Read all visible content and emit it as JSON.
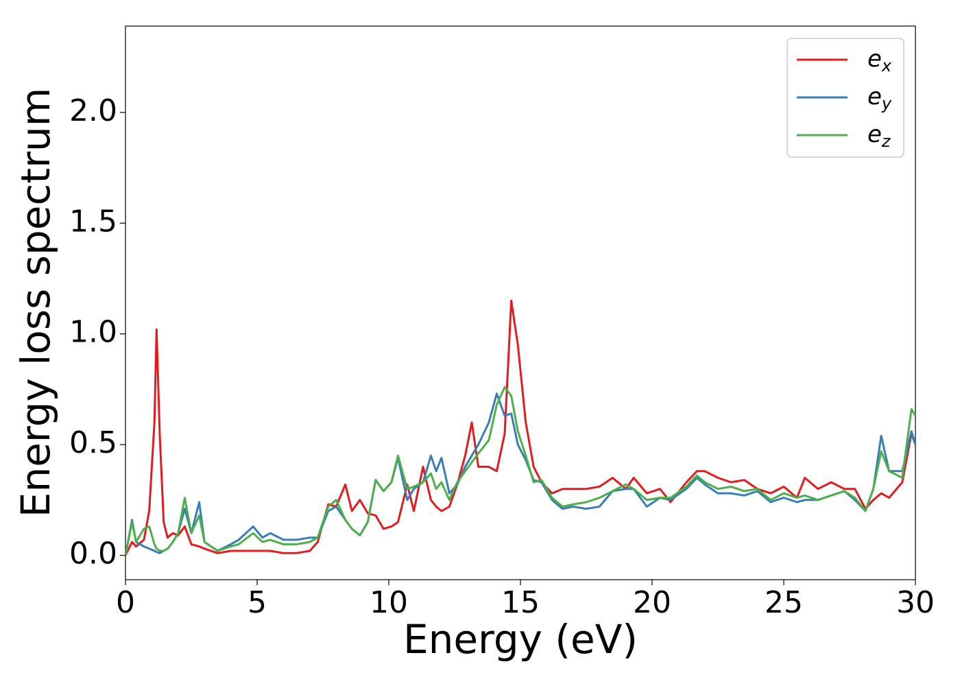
{
  "chart_data": {
    "type": "line",
    "xlabel": "Energy (eV)",
    "ylabel": "Energy loss spectrum",
    "x": [
      0,
      0.25,
      0.4,
      0.7,
      0.9,
      1.1,
      1.18,
      1.3,
      1.45,
      1.6,
      1.8,
      2.0,
      2.25,
      2.5,
      2.8,
      3.0,
      3.5,
      4.0,
      4.3,
      4.85,
      5.2,
      5.5,
      6.0,
      6.5,
      7.0,
      7.3,
      7.7,
      8.0,
      8.35,
      8.6,
      8.9,
      9.2,
      9.5,
      9.8,
      10.1,
      10.35,
      10.7,
      10.95,
      11.3,
      11.6,
      11.8,
      12.0,
      12.3,
      12.6,
      12.9,
      13.15,
      13.4,
      13.8,
      14.1,
      14.4,
      14.65,
      14.9,
      15.2,
      15.5,
      15.8,
      16.2,
      16.6,
      17.0,
      17.5,
      18.0,
      18.5,
      19.0,
      19.3,
      19.8,
      20.3,
      20.7,
      21.3,
      21.7,
      22.0,
      22.5,
      23.0,
      23.5,
      24.0,
      24.5,
      25.0,
      25.5,
      25.8,
      26.3,
      26.8,
      27.3,
      27.7,
      28.1,
      28.4,
      28.7,
      29.0,
      29.5,
      29.85,
      30
    ],
    "series": [
      {
        "name": "ex",
        "color": "#e41a1c",
        "values": [
          0,
          0.06,
          0.04,
          0.07,
          0.2,
          0.6,
          1.02,
          0.55,
          0.15,
          0.08,
          0.1,
          0.09,
          0.13,
          0.05,
          0.04,
          0.03,
          0.01,
          0.02,
          0.02,
          0.02,
          0.02,
          0.02,
          0.01,
          0.01,
          0.02,
          0.06,
          0.23,
          0.22,
          0.32,
          0.2,
          0.25,
          0.19,
          0.18,
          0.12,
          0.13,
          0.15,
          0.32,
          0.2,
          0.4,
          0.25,
          0.22,
          0.2,
          0.22,
          0.32,
          0.45,
          0.6,
          0.4,
          0.4,
          0.38,
          0.55,
          1.15,
          0.95,
          0.6,
          0.4,
          0.33,
          0.28,
          0.3,
          0.3,
          0.3,
          0.31,
          0.35,
          0.3,
          0.35,
          0.28,
          0.3,
          0.24,
          0.33,
          0.38,
          0.38,
          0.35,
          0.33,
          0.34,
          0.3,
          0.28,
          0.31,
          0.26,
          0.35,
          0.3,
          0.33,
          0.3,
          0.3,
          0.21,
          0.25,
          0.28,
          0.26,
          0.33,
          0.55,
          0.5
        ]
      },
      {
        "name": "ey",
        "color": "#377eb8",
        "values": [
          0,
          0.16,
          0.06,
          0.04,
          0.03,
          0.02,
          0.015,
          0.01,
          0.02,
          0.03,
          0.06,
          0.1,
          0.21,
          0.1,
          0.24,
          0.06,
          0.02,
          0.05,
          0.07,
          0.13,
          0.08,
          0.1,
          0.07,
          0.07,
          0.08,
          0.08,
          0.2,
          0.22,
          0.16,
          0.12,
          0.09,
          0.15,
          0.34,
          0.29,
          0.33,
          0.44,
          0.25,
          0.3,
          0.33,
          0.45,
          0.38,
          0.44,
          0.28,
          0.32,
          0.4,
          0.45,
          0.5,
          0.6,
          0.73,
          0.63,
          0.64,
          0.5,
          0.43,
          0.34,
          0.33,
          0.25,
          0.21,
          0.22,
          0.21,
          0.22,
          0.29,
          0.3,
          0.3,
          0.22,
          0.26,
          0.25,
          0.3,
          0.35,
          0.32,
          0.28,
          0.28,
          0.27,
          0.29,
          0.24,
          0.26,
          0.24,
          0.25,
          0.25,
          0.27,
          0.29,
          0.25,
          0.2,
          0.3,
          0.54,
          0.38,
          0.38,
          0.56,
          0.5
        ]
      },
      {
        "name": "ez",
        "color": "#4daf4a",
        "values": [
          0,
          0.15,
          0.06,
          0.12,
          0.13,
          0.05,
          0.03,
          0.02,
          0.02,
          0.03,
          0.06,
          0.1,
          0.26,
          0.1,
          0.18,
          0.06,
          0.02,
          0.04,
          0.05,
          0.1,
          0.06,
          0.07,
          0.05,
          0.05,
          0.06,
          0.08,
          0.22,
          0.25,
          0.16,
          0.12,
          0.09,
          0.15,
          0.34,
          0.29,
          0.33,
          0.45,
          0.3,
          0.31,
          0.33,
          0.37,
          0.3,
          0.33,
          0.25,
          0.33,
          0.38,
          0.42,
          0.46,
          0.52,
          0.68,
          0.76,
          0.72,
          0.56,
          0.45,
          0.33,
          0.34,
          0.26,
          0.22,
          0.23,
          0.24,
          0.26,
          0.29,
          0.32,
          0.3,
          0.25,
          0.26,
          0.26,
          0.31,
          0.36,
          0.33,
          0.3,
          0.31,
          0.29,
          0.3,
          0.25,
          0.28,
          0.26,
          0.27,
          0.25,
          0.27,
          0.29,
          0.26,
          0.2,
          0.3,
          0.47,
          0.38,
          0.35,
          0.66,
          0.63
        ]
      }
    ],
    "xlim": [
      0,
      30
    ],
    "xticks": [
      0,
      5,
      10,
      15,
      20,
      25,
      30
    ],
    "ylim": [
      -0.11,
      2.39
    ],
    "yticks": [
      {
        "value": 0,
        "label": "0.0"
      },
      0.5,
      {
        "value": 1,
        "label": "1.0"
      },
      1.5,
      {
        "value": 2,
        "label": "2.0"
      }
    ],
    "grid": false,
    "legend": "upper right"
  }
}
